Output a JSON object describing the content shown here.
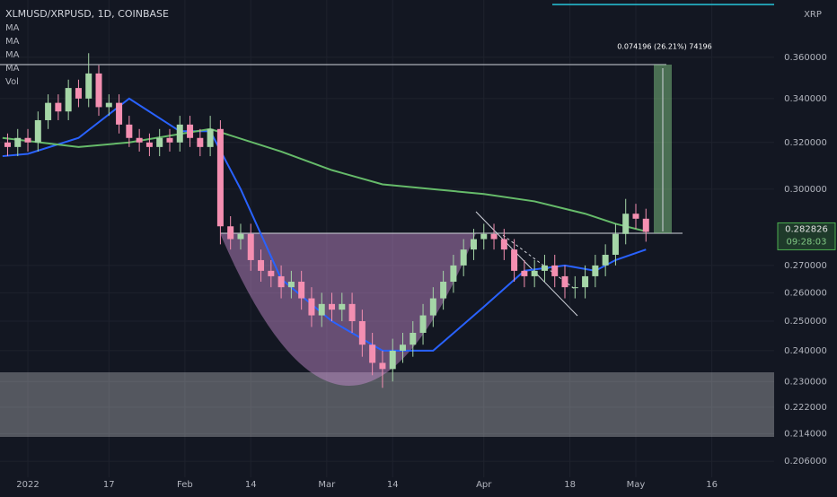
{
  "chart_data": {
    "type": "candlestick",
    "title": "XLMUSD/XRPUSD, 1D, COINBASE",
    "indicators": [
      "MA",
      "MA",
      "MA",
      "MA",
      "Vol"
    ],
    "currency": "XRP",
    "annotation": "0.074196 (26.21%) 74196",
    "last_price": 0.282826,
    "countdown": "09:28:03",
    "up_color": "#a5d6a7",
    "down_color": "#f48fb1",
    "log_scale": true,
    "grid": true,
    "xlim": [
      -5.5,
      147.3
    ],
    "ylim": [
      0.2015,
      0.3896
    ],
    "xticks": [
      {
        "value": 0,
        "label": "2022"
      },
      {
        "value": 16,
        "label": "17"
      },
      {
        "value": 31,
        "label": "Feb"
      },
      {
        "value": 44,
        "label": "14"
      },
      {
        "value": 59,
        "label": "Mar"
      },
      {
        "value": 72,
        "label": "14"
      },
      {
        "value": 90,
        "label": "Apr"
      },
      {
        "value": 107,
        "label": "18"
      },
      {
        "value": 120,
        "label": "May"
      },
      {
        "value": 135,
        "label": "16"
      }
    ],
    "yticks": [
      {
        "value": 0.36,
        "label": "0.360000"
      },
      {
        "value": 0.34,
        "label": "0.340000"
      },
      {
        "value": 0.32,
        "label": "0.320000"
      },
      {
        "value": 0.3,
        "label": "0.300000"
      },
      {
        "value": 0.27,
        "label": "0.270000"
      },
      {
        "value": 0.26,
        "label": "0.260000"
      },
      {
        "value": 0.25,
        "label": "0.250000"
      },
      {
        "value": 0.24,
        "label": "0.240000"
      },
      {
        "value": 0.23,
        "label": "0.230000"
      },
      {
        "value": 0.222,
        "label": "0.222000"
      },
      {
        "value": 0.214,
        "label": "0.214000"
      },
      {
        "value": 0.206,
        "label": "0.206000"
      }
    ],
    "x": [
      -4,
      -2,
      0,
      2,
      4,
      6,
      8,
      10,
      12,
      14,
      16,
      18,
      20,
      22,
      24,
      26,
      28,
      30,
      32,
      34,
      36,
      38,
      40,
      42,
      44,
      46,
      48,
      50,
      52,
      54,
      56,
      58,
      60,
      62,
      64,
      66,
      68,
      70,
      72,
      74,
      76,
      78,
      80,
      82,
      84,
      86,
      88,
      90,
      92,
      94,
      96,
      98,
      100,
      102,
      104,
      106,
      108,
      110,
      112,
      114,
      116,
      118,
      120,
      122
    ],
    "open": [
      0.32,
      0.318,
      0.322,
      0.32,
      0.33,
      0.338,
      0.334,
      0.345,
      0.34,
      0.352,
      0.336,
      0.338,
      0.328,
      0.322,
      0.32,
      0.318,
      0.322,
      0.32,
      0.328,
      0.322,
      0.318,
      0.326,
      0.285,
      0.28,
      0.282,
      0.272,
      0.268,
      0.266,
      0.262,
      0.264,
      0.258,
      0.252,
      0.256,
      0.254,
      0.256,
      0.25,
      0.242,
      0.236,
      0.234,
      0.24,
      0.242,
      0.246,
      0.252,
      0.258,
      0.264,
      0.27,
      0.276,
      0.28,
      0.282,
      0.28,
      0.276,
      0.268,
      0.266,
      0.268,
      0.27,
      0.266,
      0.262,
      0.262,
      0.266,
      0.27,
      0.274,
      0.282,
      0.29,
      0.288
    ],
    "high": [
      0.324,
      0.326,
      0.326,
      0.334,
      0.342,
      0.342,
      0.349,
      0.349,
      0.362,
      0.356,
      0.342,
      0.342,
      0.332,
      0.326,
      0.324,
      0.326,
      0.326,
      0.332,
      0.332,
      0.326,
      0.332,
      0.33,
      0.289,
      0.286,
      0.286,
      0.276,
      0.272,
      0.27,
      0.268,
      0.268,
      0.262,
      0.26,
      0.26,
      0.26,
      0.26,
      0.254,
      0.246,
      0.24,
      0.244,
      0.246,
      0.25,
      0.256,
      0.262,
      0.268,
      0.274,
      0.28,
      0.284,
      0.286,
      0.286,
      0.284,
      0.28,
      0.272,
      0.272,
      0.274,
      0.274,
      0.27,
      0.266,
      0.27,
      0.274,
      0.278,
      0.286,
      0.296,
      0.294,
      0.292
    ],
    "low": [
      0.314,
      0.314,
      0.316,
      0.316,
      0.326,
      0.33,
      0.33,
      0.336,
      0.336,
      0.332,
      0.332,
      0.324,
      0.318,
      0.316,
      0.314,
      0.314,
      0.316,
      0.316,
      0.318,
      0.314,
      0.314,
      0.278,
      0.276,
      0.276,
      0.268,
      0.264,
      0.262,
      0.258,
      0.258,
      0.254,
      0.248,
      0.248,
      0.25,
      0.25,
      0.246,
      0.238,
      0.232,
      0.228,
      0.23,
      0.236,
      0.238,
      0.242,
      0.248,
      0.254,
      0.26,
      0.266,
      0.272,
      0.276,
      0.276,
      0.272,
      0.264,
      0.262,
      0.262,
      0.264,
      0.262,
      0.258,
      0.258,
      0.258,
      0.262,
      0.266,
      0.27,
      0.278,
      0.284,
      0.279
    ],
    "close": [
      0.318,
      0.322,
      0.32,
      0.33,
      0.338,
      0.334,
      0.345,
      0.34,
      0.352,
      0.336,
      0.338,
      0.328,
      0.322,
      0.32,
      0.318,
      0.322,
      0.32,
      0.328,
      0.322,
      0.318,
      0.326,
      0.285,
      0.28,
      0.282,
      0.272,
      0.268,
      0.266,
      0.262,
      0.264,
      0.258,
      0.252,
      0.256,
      0.254,
      0.256,
      0.25,
      0.242,
      0.236,
      0.234,
      0.24,
      0.242,
      0.246,
      0.252,
      0.258,
      0.264,
      0.27,
      0.276,
      0.28,
      0.282,
      0.28,
      0.276,
      0.268,
      0.266,
      0.268,
      0.27,
      0.266,
      0.262,
      0.262,
      0.266,
      0.27,
      0.274,
      0.282,
      0.29,
      0.288,
      0.2828
    ],
    "lines": [
      {
        "color": "#2962ff",
        "x": [
          -5,
          0,
          10,
          20,
          30,
          36,
          42,
          50,
          60,
          70,
          80,
          90,
          98,
          106,
          112,
          116,
          122
        ],
        "values": [
          0.314,
          0.315,
          0.322,
          0.34,
          0.325,
          0.325,
          0.3,
          0.265,
          0.25,
          0.24,
          0.24,
          0.255,
          0.268,
          0.27,
          0.268,
          0.272,
          0.276
        ]
      },
      {
        "color": "#66bb6a",
        "x": [
          -5,
          10,
          20,
          36,
          50,
          60,
          70,
          80,
          90,
          100,
          110,
          116,
          122
        ],
        "values": [
          0.322,
          0.318,
          0.32,
          0.326,
          0.316,
          0.308,
          0.302,
          0.3,
          0.298,
          0.295,
          0.29,
          0.286,
          0.283
        ]
      }
    ]
  }
}
